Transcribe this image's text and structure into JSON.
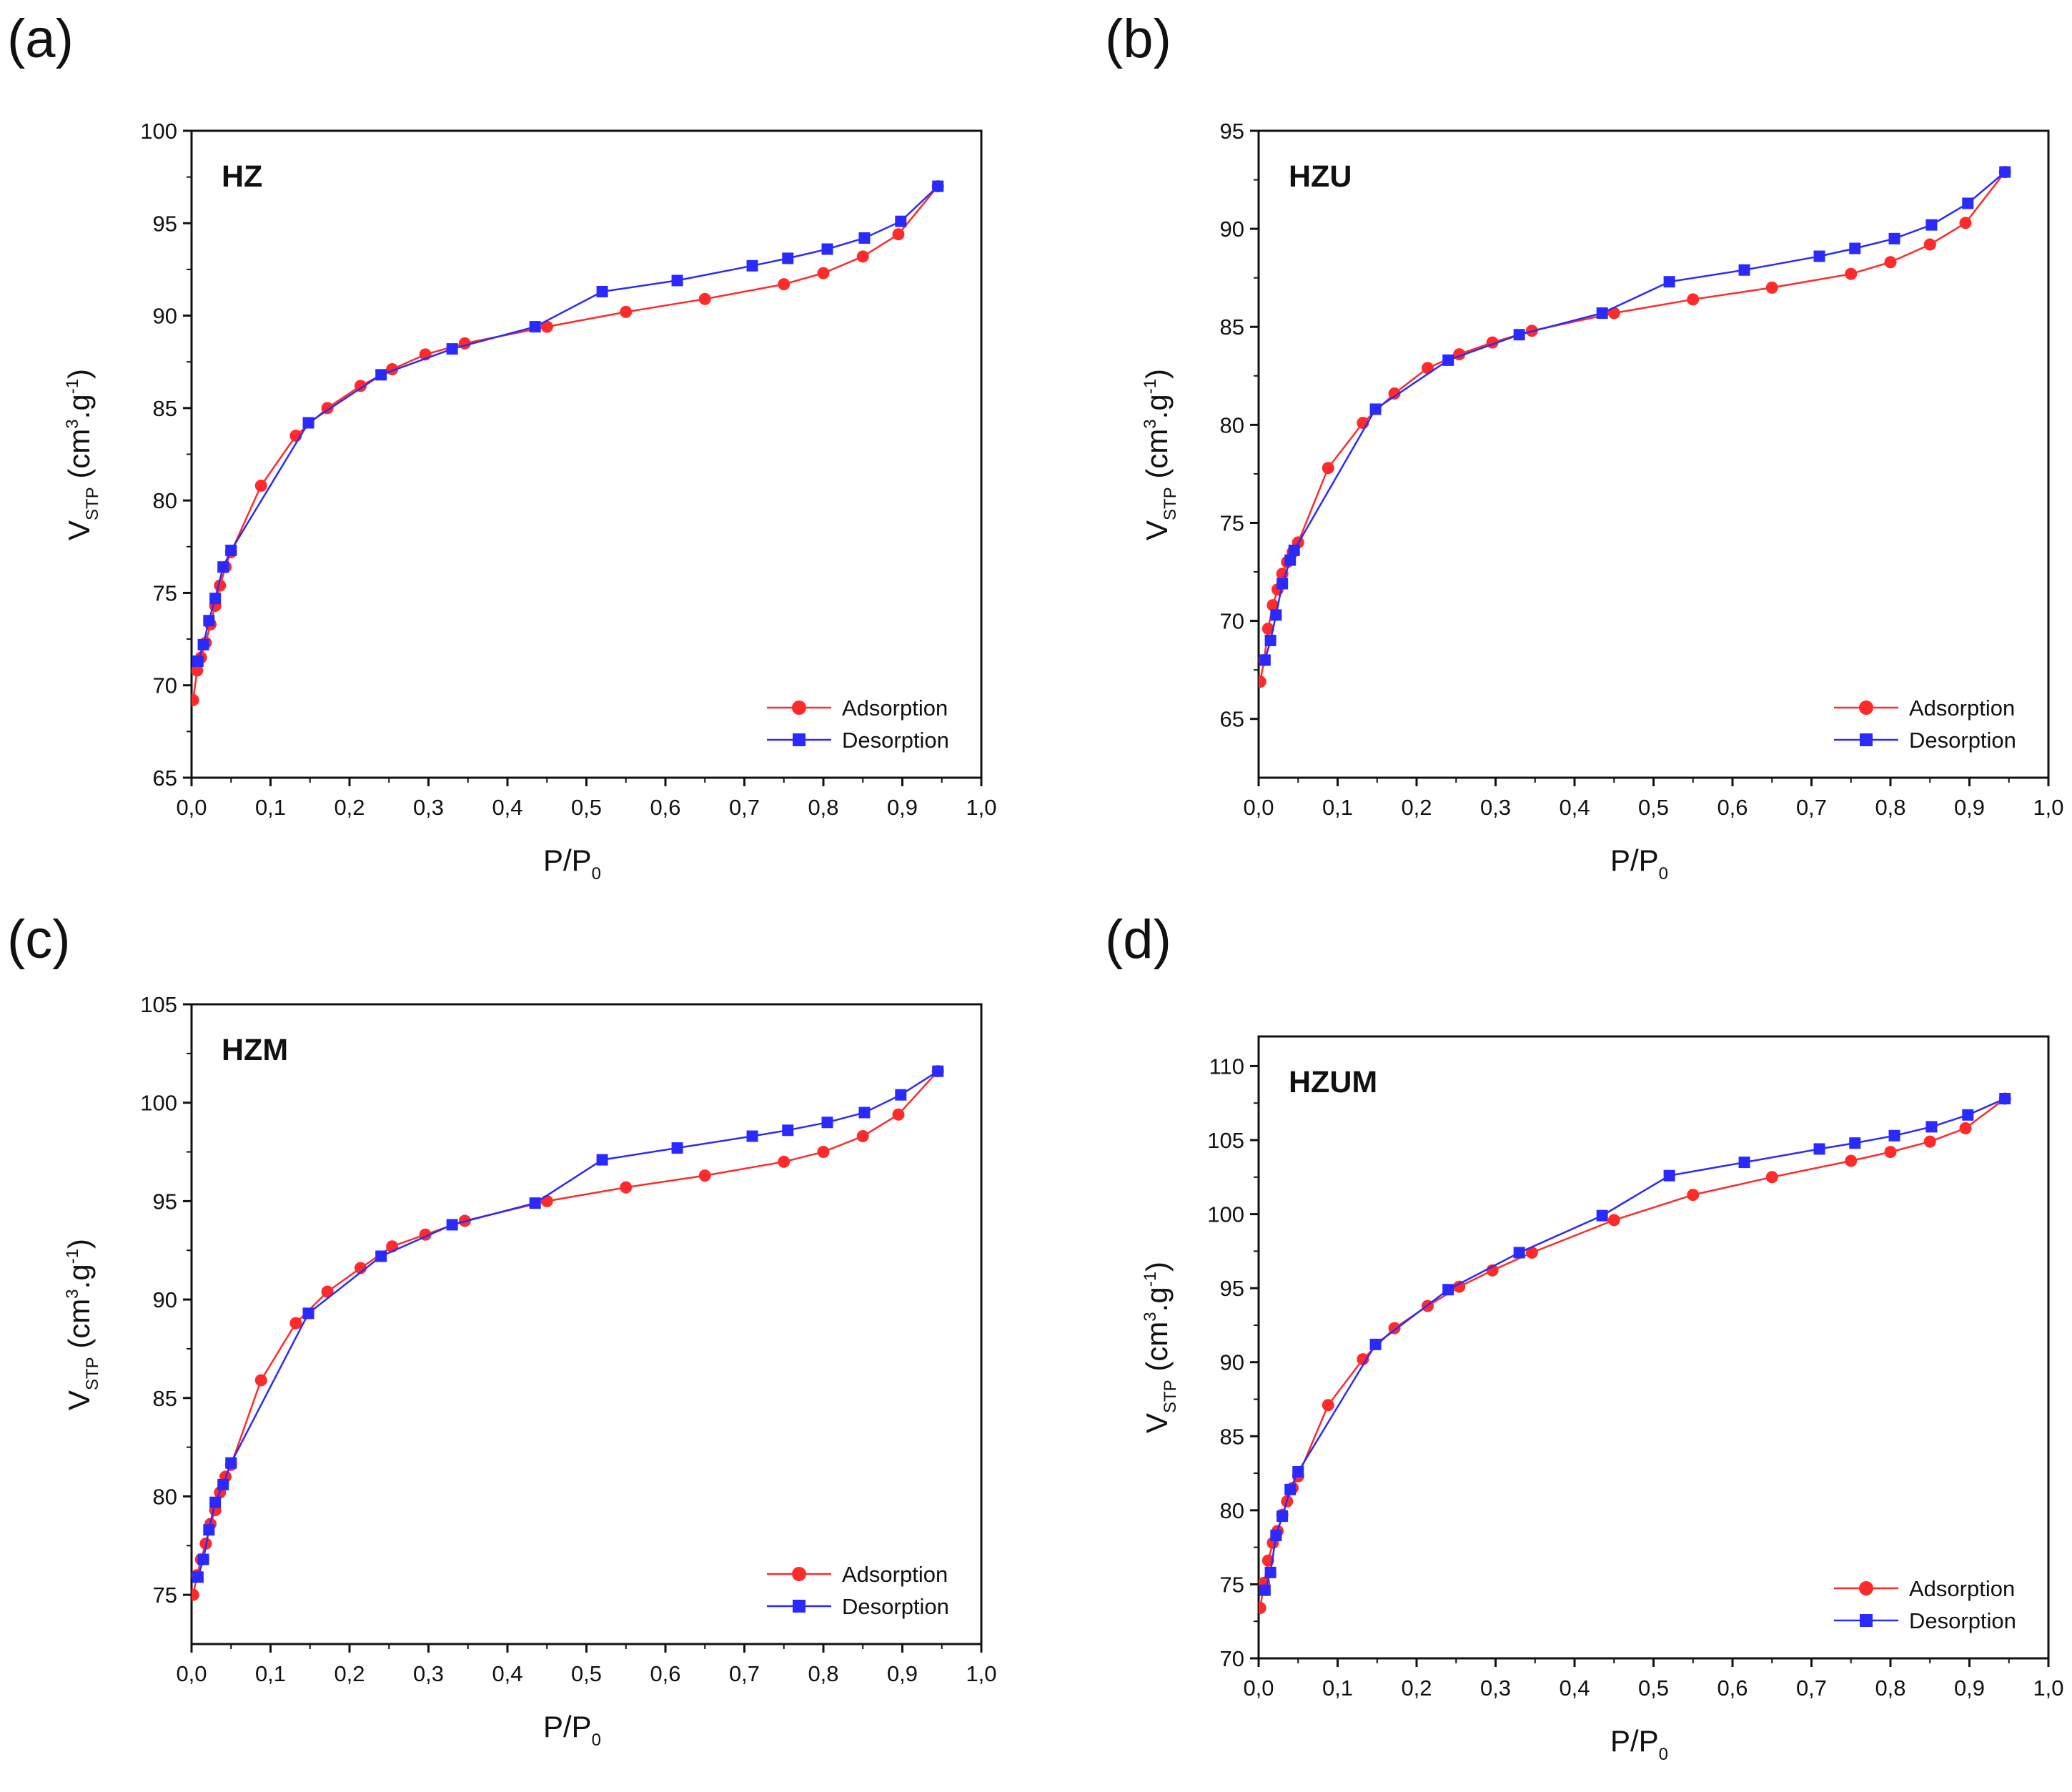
{
  "chart_data": [
    {
      "type": "line",
      "panel_label": "(a)",
      "sample": "HZ",
      "xlabel": "P/P",
      "xlabel_sub": "0",
      "ylabel": "V",
      "ylabel_sub": "STP",
      "ylabel_unit": "(cm",
      "ylabel_sup": "3",
      "ylabel_mid": ".g",
      "ylabel_sup2": "-1",
      "ylabel_close": ")",
      "xlim": [
        0,
        1
      ],
      "ylim": [
        65,
        100
      ],
      "xticks": [
        "0,0",
        "0,1",
        "0,2",
        "0,3",
        "0,4",
        "0,5",
        "0,6",
        "0,7",
        "0,8",
        "0,9",
        "1,0"
      ],
      "yticks": [
        "65",
        "70",
        "75",
        "80",
        "85",
        "90",
        "95",
        "100"
      ],
      "legend_position": "bottom-right",
      "series": [
        {
          "name": "Adsorption",
          "color": "#ff2a2a",
          "marker": "circle",
          "x": [
            0.002,
            0.007,
            0.012,
            0.018,
            0.024,
            0.03,
            0.036,
            0.043,
            0.05,
            0.088,
            0.132,
            0.172,
            0.214,
            0.254,
            0.296,
            0.346,
            0.45,
            0.55,
            0.65,
            0.75,
            0.8,
            0.85,
            0.895,
            0.945
          ],
          "y": [
            69.2,
            70.8,
            71.5,
            72.3,
            73.3,
            74.3,
            75.4,
            76.4,
            77.2,
            80.8,
            83.5,
            85.0,
            86.2,
            87.1,
            87.9,
            88.5,
            89.4,
            90.2,
            90.9,
            91.7,
            92.3,
            93.2,
            94.4,
            97.0
          ]
        },
        {
          "name": "Desorption",
          "color": "#2a2aff",
          "marker": "square",
          "x": [
            0.945,
            0.898,
            0.852,
            0.805,
            0.755,
            0.71,
            0.615,
            0.52,
            0.435,
            0.33,
            0.24,
            0.148,
            0.05,
            0.04,
            0.03,
            0.022,
            0.015,
            0.008
          ],
          "y": [
            97.0,
            95.1,
            94.2,
            93.6,
            93.1,
            92.7,
            91.9,
            91.3,
            89.4,
            88.2,
            86.8,
            84.2,
            77.3,
            76.4,
            74.7,
            73.5,
            72.2,
            71.3
          ]
        }
      ]
    },
    {
      "type": "line",
      "panel_label": "(b)",
      "sample": "HZU",
      "xlabel": "P/P",
      "xlabel_sub": "0",
      "ylabel": "V",
      "ylabel_sub": "STP",
      "ylabel_unit": "(cm",
      "ylabel_sup": "3",
      "ylabel_mid": ".g",
      "ylabel_sup2": "-1",
      "ylabel_close": ")",
      "xlim": [
        0,
        1
      ],
      "ylim": [
        62,
        95
      ],
      "xticks": [
        "0,0",
        "0,1",
        "0,2",
        "0,3",
        "0,4",
        "0,5",
        "0,6",
        "0,7",
        "0,8",
        "0,9",
        "1,0"
      ],
      "yticks": [
        "65",
        "70",
        "75",
        "80",
        "85",
        "90",
        "95"
      ],
      "legend_position": "bottom-right",
      "series": [
        {
          "name": "Adsorption",
          "color": "#ff2a2a",
          "marker": "circle",
          "x": [
            0.002,
            0.007,
            0.012,
            0.018,
            0.024,
            0.03,
            0.036,
            0.043,
            0.05,
            0.088,
            0.132,
            0.172,
            0.214,
            0.254,
            0.296,
            0.346,
            0.45,
            0.55,
            0.65,
            0.75,
            0.8,
            0.85,
            0.895,
            0.945
          ],
          "y": [
            66.9,
            68.0,
            69.6,
            70.8,
            71.6,
            72.4,
            73.0,
            73.5,
            74.0,
            77.8,
            80.1,
            81.6,
            82.9,
            83.6,
            84.2,
            84.8,
            85.7,
            86.4,
            87.0,
            87.7,
            88.3,
            89.2,
            90.3,
            92.9
          ]
        },
        {
          "name": "Desorption",
          "color": "#2a2aff",
          "marker": "square",
          "x": [
            0.945,
            0.898,
            0.852,
            0.805,
            0.755,
            0.71,
            0.615,
            0.52,
            0.435,
            0.33,
            0.24,
            0.148,
            0.045,
            0.04,
            0.03,
            0.022,
            0.015,
            0.008
          ],
          "y": [
            92.9,
            91.3,
            90.2,
            89.5,
            89.0,
            88.6,
            87.9,
            87.3,
            85.7,
            84.6,
            83.3,
            80.8,
            73.6,
            73.1,
            71.9,
            70.3,
            69.0,
            68.0
          ]
        }
      ]
    },
    {
      "type": "line",
      "panel_label": "(c)",
      "sample": "HZM",
      "xlabel": "P/P",
      "xlabel_sub": "0",
      "ylabel": "V",
      "ylabel_sub": "STP",
      "ylabel_unit": "(cm",
      "ylabel_sup": "3",
      "ylabel_mid": ".g",
      "ylabel_sup2": "-1",
      "ylabel_close": ")",
      "xlim": [
        0,
        1
      ],
      "ylim": [
        72.5,
        105
      ],
      "xticks": [
        "0,0",
        "0,1",
        "0,2",
        "0,3",
        "0,4",
        "0,5",
        "0,6",
        "0,7",
        "0,8",
        "0,9",
        "1,0"
      ],
      "yticks": [
        "75",
        "80",
        "85",
        "90",
        "95",
        "100",
        "105"
      ],
      "legend_position": "bottom-right",
      "series": [
        {
          "name": "Adsorption",
          "color": "#ff2a2a",
          "marker": "circle",
          "x": [
            0.002,
            0.007,
            0.012,
            0.018,
            0.024,
            0.03,
            0.036,
            0.043,
            0.05,
            0.088,
            0.132,
            0.172,
            0.214,
            0.254,
            0.296,
            0.346,
            0.45,
            0.55,
            0.65,
            0.75,
            0.8,
            0.85,
            0.895,
            0.945
          ],
          "y": [
            75.0,
            76.0,
            76.8,
            77.6,
            78.6,
            79.3,
            80.2,
            81.0,
            81.6,
            85.9,
            88.8,
            90.4,
            91.6,
            92.7,
            93.3,
            94.0,
            95.0,
            95.7,
            96.3,
            97.0,
            97.5,
            98.3,
            99.4,
            101.6
          ]
        },
        {
          "name": "Desorption",
          "color": "#2a2aff",
          "marker": "square",
          "x": [
            0.945,
            0.898,
            0.852,
            0.805,
            0.755,
            0.71,
            0.615,
            0.52,
            0.435,
            0.33,
            0.24,
            0.148,
            0.05,
            0.04,
            0.03,
            0.022,
            0.015,
            0.008
          ],
          "y": [
            101.6,
            100.4,
            99.5,
            99.0,
            98.6,
            98.3,
            97.7,
            97.1,
            94.9,
            93.8,
            92.2,
            89.3,
            81.7,
            80.6,
            79.7,
            78.3,
            76.8,
            75.9
          ]
        }
      ]
    },
    {
      "type": "line",
      "panel_label": "(d)",
      "sample": "HZUM",
      "xlabel": "P/P",
      "xlabel_sub": "0",
      "ylabel": "V",
      "ylabel_sub": "STP",
      "ylabel_unit": "(cm",
      "ylabel_sup": "3",
      "ylabel_mid": ".g",
      "ylabel_sup2": "-1",
      "ylabel_close": ")",
      "xlim": [
        0,
        1
      ],
      "ylim": [
        70,
        112
      ],
      "xticks": [
        "0,0",
        "0,1",
        "0,2",
        "0,3",
        "0,4",
        "0,5",
        "0,6",
        "0,7",
        "0,8",
        "0,9",
        "1,0"
      ],
      "yticks": [
        "70",
        "75",
        "80",
        "85",
        "90",
        "95",
        "100",
        "105",
        "110"
      ],
      "legend_position": "bottom-right",
      "series": [
        {
          "name": "Adsorption",
          "color": "#ff2a2a",
          "marker": "circle",
          "x": [
            0.002,
            0.007,
            0.012,
            0.018,
            0.024,
            0.03,
            0.036,
            0.043,
            0.05,
            0.088,
            0.132,
            0.172,
            0.214,
            0.254,
            0.296,
            0.346,
            0.45,
            0.55,
            0.65,
            0.75,
            0.8,
            0.85,
            0.895,
            0.945
          ],
          "y": [
            73.4,
            75.1,
            76.6,
            77.8,
            78.6,
            79.7,
            80.6,
            81.5,
            82.3,
            87.1,
            90.2,
            92.3,
            93.8,
            95.1,
            96.2,
            97.4,
            99.6,
            101.3,
            102.5,
            103.6,
            104.2,
            104.9,
            105.8,
            107.8
          ]
        },
        {
          "name": "Desorption",
          "color": "#2a2aff",
          "marker": "square",
          "x": [
            0.945,
            0.898,
            0.852,
            0.805,
            0.755,
            0.71,
            0.615,
            0.52,
            0.435,
            0.33,
            0.24,
            0.148,
            0.05,
            0.04,
            0.03,
            0.022,
            0.015,
            0.008
          ],
          "y": [
            107.8,
            106.7,
            105.9,
            105.3,
            104.8,
            104.4,
            103.5,
            102.6,
            99.9,
            97.4,
            94.9,
            91.2,
            82.6,
            81.4,
            79.6,
            78.3,
            75.8,
            74.6
          ]
        }
      ]
    }
  ]
}
